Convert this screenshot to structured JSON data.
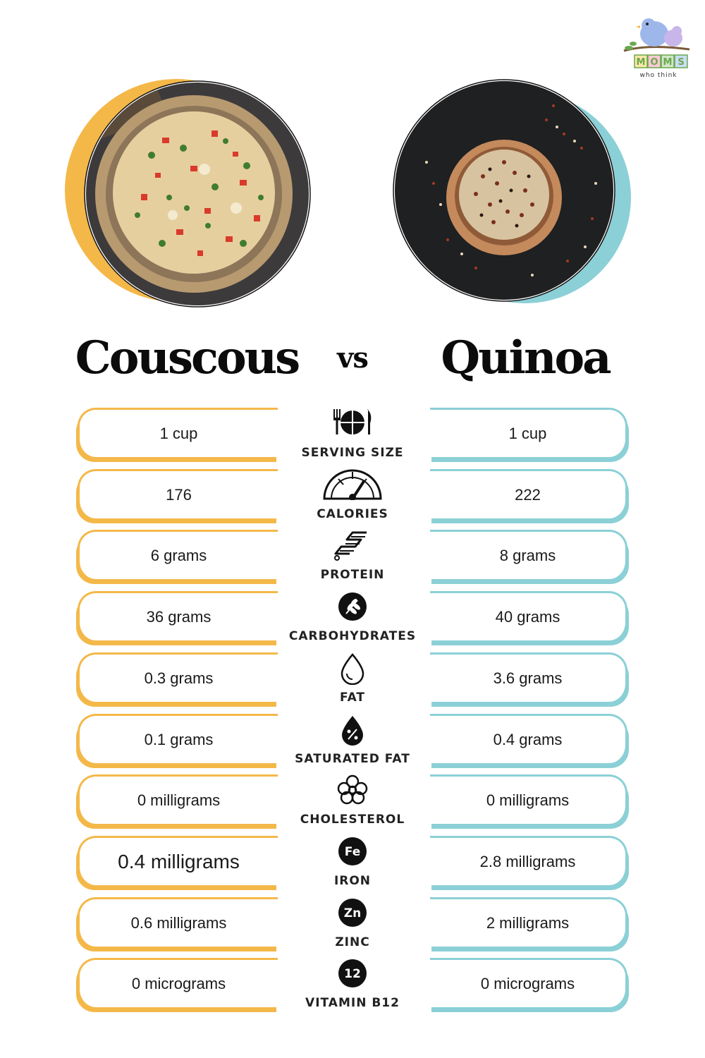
{
  "logo": {
    "letters": [
      "M",
      "O",
      "M",
      "S"
    ],
    "tagline": "who think"
  },
  "left_food": {
    "name": "Couscous",
    "accent": "#f4b849"
  },
  "right_food": {
    "name": "Quinoa",
    "accent": "#8bd0d6"
  },
  "vs_label": "vs",
  "rows": [
    {
      "label": "SERVING SIZE",
      "icon": "fork-plate-knife-icon",
      "left": "1 cup",
      "right": "1 cup"
    },
    {
      "label": "CALORIES",
      "icon": "gauge-icon",
      "left": "176",
      "right": "222"
    },
    {
      "label": "PROTEIN",
      "icon": "protein-chain-icon",
      "left": "6 grams",
      "right": "8 grams"
    },
    {
      "label": "CARBOHYDRATES",
      "icon": "wheat-icon",
      "left": "36 grams",
      "right": "40 grams"
    },
    {
      "label": "FAT",
      "icon": "drop-icon",
      "left": "0.3 grams",
      "right": "3.6 grams"
    },
    {
      "label": "SATURATED FAT",
      "icon": "percent-drop-icon",
      "left": "0.1 grams",
      "right": "0.4 grams"
    },
    {
      "label": "CHOLESTEROL",
      "icon": "molecule-icon",
      "left": "0 milligrams",
      "right": "0 milligrams"
    },
    {
      "label": "IRON",
      "icon": "iron-fe-icon",
      "badge": "Fe",
      "left": "0.4 milligrams",
      "right": "2.8 milligrams"
    },
    {
      "label": "ZINC",
      "icon": "zinc-zn-icon",
      "badge": "Zn",
      "left": "0.6 milligrams",
      "right": "2 milligrams"
    },
    {
      "label": "VITAMIN B12",
      "icon": "b12-icon",
      "badge": "12",
      "left": "0 micrograms",
      "right": "0 micrograms"
    }
  ]
}
